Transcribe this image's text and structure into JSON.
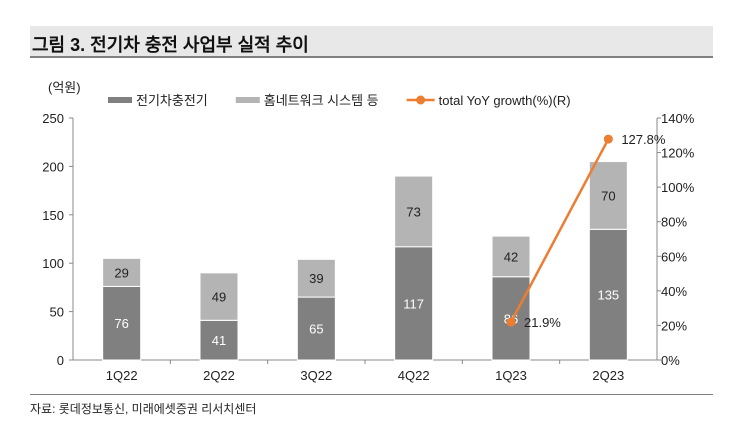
{
  "title": "그림 3. 전기차 충전 사업부 실적 추이",
  "source": "자료: 롯데정보통신, 미래에셋증권 리서치센터",
  "chart_data": {
    "type": "bar",
    "stacked": true,
    "unit_label": "(억원)",
    "categories": [
      "1Q22",
      "2Q22",
      "3Q22",
      "4Q22",
      "1Q23",
      "2Q23"
    ],
    "series": [
      {
        "name": "전기차충전기",
        "type": "bar",
        "axis": "left",
        "color": "#808080",
        "values": [
          76,
          41,
          65,
          117,
          86,
          135
        ]
      },
      {
        "name": "홈네트워크 시스템 등",
        "type": "bar",
        "axis": "left",
        "color": "#b4b4b4",
        "values": [
          29,
          49,
          39,
          73,
          42,
          70
        ]
      },
      {
        "name": "total YoY growth(%)(R)",
        "type": "line",
        "axis": "right",
        "color": "#ed7d31",
        "x": [
          "1Q23",
          "2Q23"
        ],
        "values": [
          21.9,
          127.8
        ],
        "labels": [
          "21.9%",
          "127.8%"
        ]
      }
    ],
    "y_left": {
      "range": [
        0,
        250
      ],
      "ticks": [
        "0",
        "50",
        "100",
        "150",
        "200",
        "250"
      ]
    },
    "y_right": {
      "range": [
        0,
        140
      ],
      "ticks": [
        "0%",
        "20%",
        "40%",
        "60%",
        "80%",
        "100%",
        "120%",
        "140%"
      ]
    },
    "legend": "top",
    "grid": false
  }
}
